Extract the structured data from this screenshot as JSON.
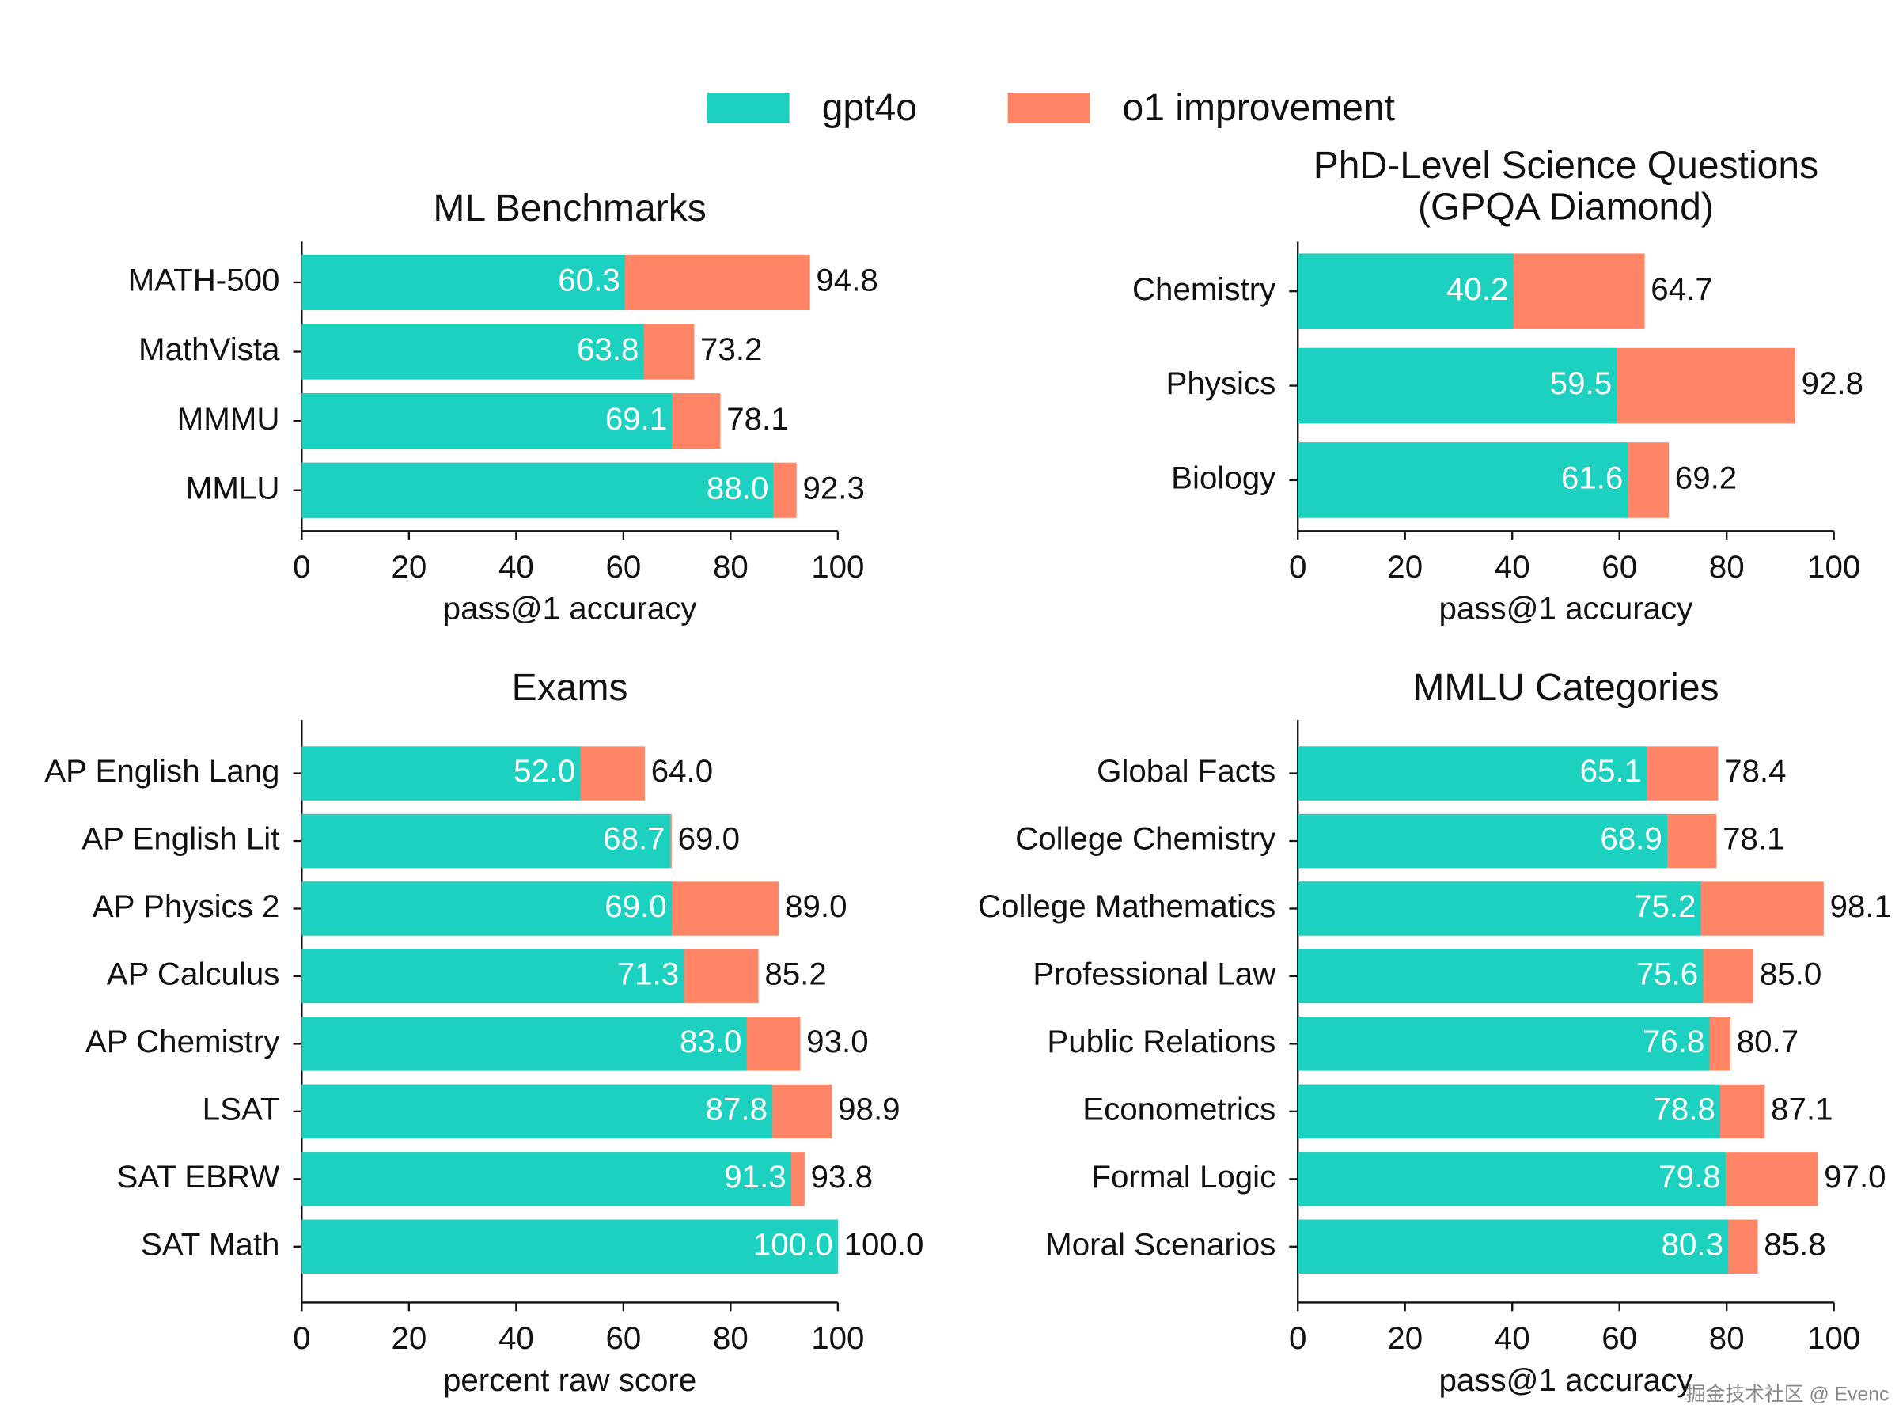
{
  "chart_data": [
    {
      "type": "bar",
      "orientation": "horizontal",
      "overlap": true,
      "title": "ML Benchmarks",
      "x_label": "pass@1 accuracy",
      "categories": [
        "MATH-500",
        "MathVista",
        "MMMU",
        "MMLU"
      ],
      "series": [
        {
          "name": "gpt4o",
          "color": "#1dd1c1",
          "values": [
            60.3,
            63.8,
            69.1,
            88.0
          ],
          "value_labels": [
            "60.3",
            "63.8",
            "69.1",
            "88.0"
          ]
        },
        {
          "name": "o1 improvement",
          "color": "#ff8566",
          "values": [
            94.8,
            73.2,
            78.1,
            92.3
          ],
          "value_labels": [
            "94.8",
            "73.2",
            "78.1",
            "92.3"
          ]
        }
      ],
      "xlim": [
        0,
        100
      ],
      "xticks": [
        0,
        20,
        40,
        60,
        80,
        100
      ]
    },
    {
      "type": "bar",
      "orientation": "horizontal",
      "overlap": true,
      "title": "PhD-Level Science Questions\n(GPQA Diamond)",
      "x_label": "pass@1 accuracy",
      "categories": [
        "Chemistry",
        "Physics",
        "Biology"
      ],
      "series": [
        {
          "name": "gpt4o",
          "color": "#1dd1c1",
          "values": [
            40.2,
            59.5,
            61.6
          ],
          "value_labels": [
            "40.2",
            "59.5",
            "61.6"
          ]
        },
        {
          "name": "o1 improvement",
          "color": "#ff8566",
          "values": [
            64.7,
            92.8,
            69.2
          ],
          "value_labels": [
            "64.7",
            "92.8",
            "69.2"
          ]
        }
      ],
      "xlim": [
        0,
        100
      ],
      "xticks": [
        0,
        20,
        40,
        60,
        80,
        100
      ]
    },
    {
      "type": "bar",
      "orientation": "horizontal",
      "overlap": true,
      "title": "Exams",
      "x_label": "percent raw score",
      "categories": [
        "AP English Lang",
        "AP English Lit",
        "AP Physics 2",
        "AP Calculus",
        "AP Chemistry",
        "LSAT",
        "SAT EBRW",
        "SAT Math"
      ],
      "series": [
        {
          "name": "gpt4o",
          "color": "#1dd1c1",
          "values": [
            52.0,
            68.7,
            69.0,
            71.3,
            83.0,
            87.8,
            91.3,
            100.0
          ],
          "value_labels": [
            "52.0",
            "68.7",
            "69.0",
            "71.3",
            "83.0",
            "87.8",
            "91.3",
            "100.0"
          ]
        },
        {
          "name": "o1 improvement",
          "color": "#ff8566",
          "values": [
            64.0,
            69.0,
            89.0,
            85.2,
            93.0,
            98.9,
            93.8,
            100.0
          ],
          "value_labels": [
            "64.0",
            "69.0",
            "89.0",
            "85.2",
            "93.0",
            "98.9",
            "93.8",
            "100.0"
          ]
        }
      ],
      "xlim": [
        0,
        100
      ],
      "xticks": [
        0,
        20,
        40,
        60,
        80,
        100
      ]
    },
    {
      "type": "bar",
      "orientation": "horizontal",
      "overlap": true,
      "title": "MMLU Categories",
      "x_label": "pass@1 accuracy",
      "categories": [
        "Global Facts",
        "College Chemistry",
        "College Mathematics",
        "Professional Law",
        "Public Relations",
        "Econometrics",
        "Formal Logic",
        "Moral Scenarios"
      ],
      "series": [
        {
          "name": "gpt4o",
          "color": "#1dd1c1",
          "values": [
            65.1,
            68.9,
            75.2,
            75.6,
            76.8,
            78.8,
            79.8,
            80.3
          ],
          "value_labels": [
            "65.1",
            "68.9",
            "75.2",
            "75.6",
            "76.8",
            "78.8",
            "79.8",
            "80.3"
          ]
        },
        {
          "name": "o1 improvement",
          "color": "#ff8566",
          "values": [
            78.4,
            78.1,
            98.1,
            85.0,
            80.7,
            87.1,
            97.0,
            85.8
          ],
          "value_labels": [
            "78.4",
            "78.1",
            "98.1",
            "85.0",
            "80.7",
            "87.1",
            "97.0",
            "85.8"
          ]
        }
      ],
      "xlim": [
        0,
        100
      ],
      "xticks": [
        0,
        20,
        40,
        60,
        80,
        100
      ]
    }
  ],
  "watermark": "掘金技术社区 @ Evenc"
}
